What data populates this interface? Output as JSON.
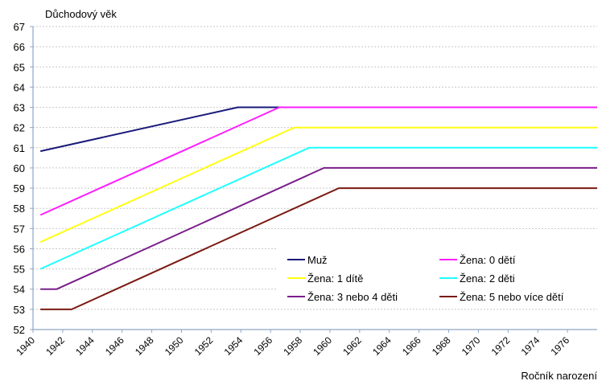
{
  "chart_data": {
    "type": "line",
    "ylabel": "Důchodový věk",
    "xlabel": "Ročník narození",
    "xlim": [
      1940,
      1978
    ],
    "ylim": [
      52,
      67
    ],
    "x_ticks": [
      1940,
      1942,
      1944,
      1946,
      1948,
      1950,
      1952,
      1954,
      1956,
      1958,
      1960,
      1962,
      1964,
      1966,
      1968,
      1970,
      1972,
      1974,
      1976
    ],
    "y_ticks": [
      52,
      53,
      54,
      55,
      56,
      57,
      58,
      59,
      60,
      61,
      62,
      63,
      64,
      65,
      66,
      67
    ],
    "grid": true,
    "legend_position": "bottom-right",
    "series": [
      {
        "name": "Muž",
        "color": "#1a1a7a",
        "x": [
          1940.5,
          1953.8,
          1978
        ],
        "y": [
          60.83,
          63,
          63
        ]
      },
      {
        "name": "Žena: 0 dětí",
        "color": "#ff1eff",
        "x": [
          1940.5,
          1956.6,
          1978
        ],
        "y": [
          57.67,
          63,
          63
        ]
      },
      {
        "name": "Žena: 1 dítě",
        "color": "#ffff14",
        "x": [
          1940.5,
          1957.6,
          1978
        ],
        "y": [
          56.33,
          62,
          62
        ]
      },
      {
        "name": "Žena: 2 děti",
        "color": "#1effff",
        "x": [
          1940.5,
          1958.6,
          1978
        ],
        "y": [
          55,
          61,
          61
        ]
      },
      {
        "name": "Žena: 3 nebo 4 děti",
        "color": "#7a1e8a",
        "x": [
          1940.5,
          1941.6,
          1959.6,
          1978
        ],
        "y": [
          54,
          54,
          60,
          60
        ]
      },
      {
        "name": "Žena: 5 nebo více dětí",
        "color": "#7a1a12",
        "x": [
          1940.5,
          1942.6,
          1960.6,
          1978
        ],
        "y": [
          53,
          53,
          59,
          59
        ]
      }
    ]
  }
}
